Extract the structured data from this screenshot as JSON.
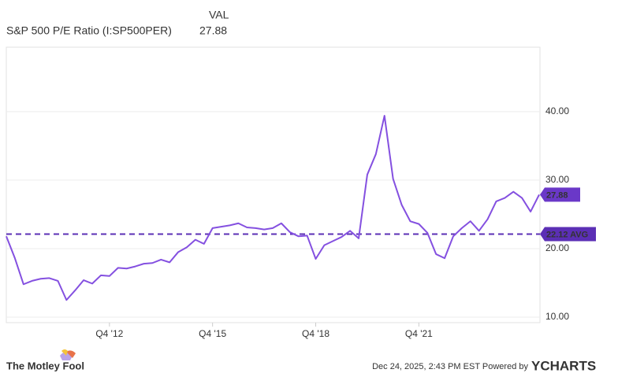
{
  "chart_data": {
    "type": "line",
    "value_header": "VAL",
    "categories": [
      null,
      null,
      null,
      null,
      null,
      null,
      null,
      null,
      null,
      null,
      null,
      null,
      "Q4 '12",
      null,
      null,
      null,
      null,
      null,
      null,
      null,
      null,
      null,
      null,
      null,
      "Q4 '15",
      null,
      null,
      null,
      null,
      null,
      null,
      null,
      null,
      null,
      null,
      null,
      "Q4 '18",
      null,
      null,
      null,
      null,
      null,
      null,
      null,
      null,
      null,
      null,
      null,
      "Q4 '21",
      null,
      null,
      null,
      null,
      null,
      null,
      null,
      null,
      null,
      null,
      null,
      null,
      null,
      null
    ],
    "series": [
      {
        "name": "S&P 500 P/E Ratio (I:SP500PER)",
        "color": "#8450e0",
        "values": [
          21.8,
          18.6,
          14.8,
          15.3,
          15.6,
          15.7,
          15.3,
          12.5,
          13.9,
          15.4,
          14.9,
          16.1,
          16.0,
          17.2,
          17.1,
          17.4,
          17.8,
          17.9,
          18.4,
          18.0,
          19.5,
          20.2,
          21.3,
          20.7,
          23.0,
          23.2,
          23.4,
          23.7,
          23.1,
          23.0,
          22.8,
          23.0,
          23.7,
          22.4,
          21.8,
          21.9,
          18.5,
          20.5,
          21.1,
          21.7,
          22.6,
          21.5,
          30.8,
          33.8,
          39.4,
          30.2,
          26.4,
          24.0,
          23.6,
          22.3,
          19.2,
          18.6,
          21.8,
          23.0,
          24.0,
          22.6,
          24.3,
          26.9,
          27.4,
          28.3,
          27.4,
          25.4,
          27.88
        ]
      }
    ],
    "average": {
      "value": 22.12,
      "label": "22.12 AVG"
    },
    "average_color": "#5b2fb5",
    "ylim": [
      9.2,
      49.4
    ],
    "yticks": [
      {
        "value": 10,
        "label": "10.00"
      },
      {
        "value": 20,
        "label": "20.00"
      },
      {
        "value": 30,
        "label": "30.00"
      },
      {
        "value": 40,
        "label": "40.00"
      }
    ],
    "grid": true,
    "logo_text": "The Motley Fool",
    "source": "Dec 24, 2025, 2:43 PM EST Powered by",
    "brand": "YCHARTS"
  }
}
